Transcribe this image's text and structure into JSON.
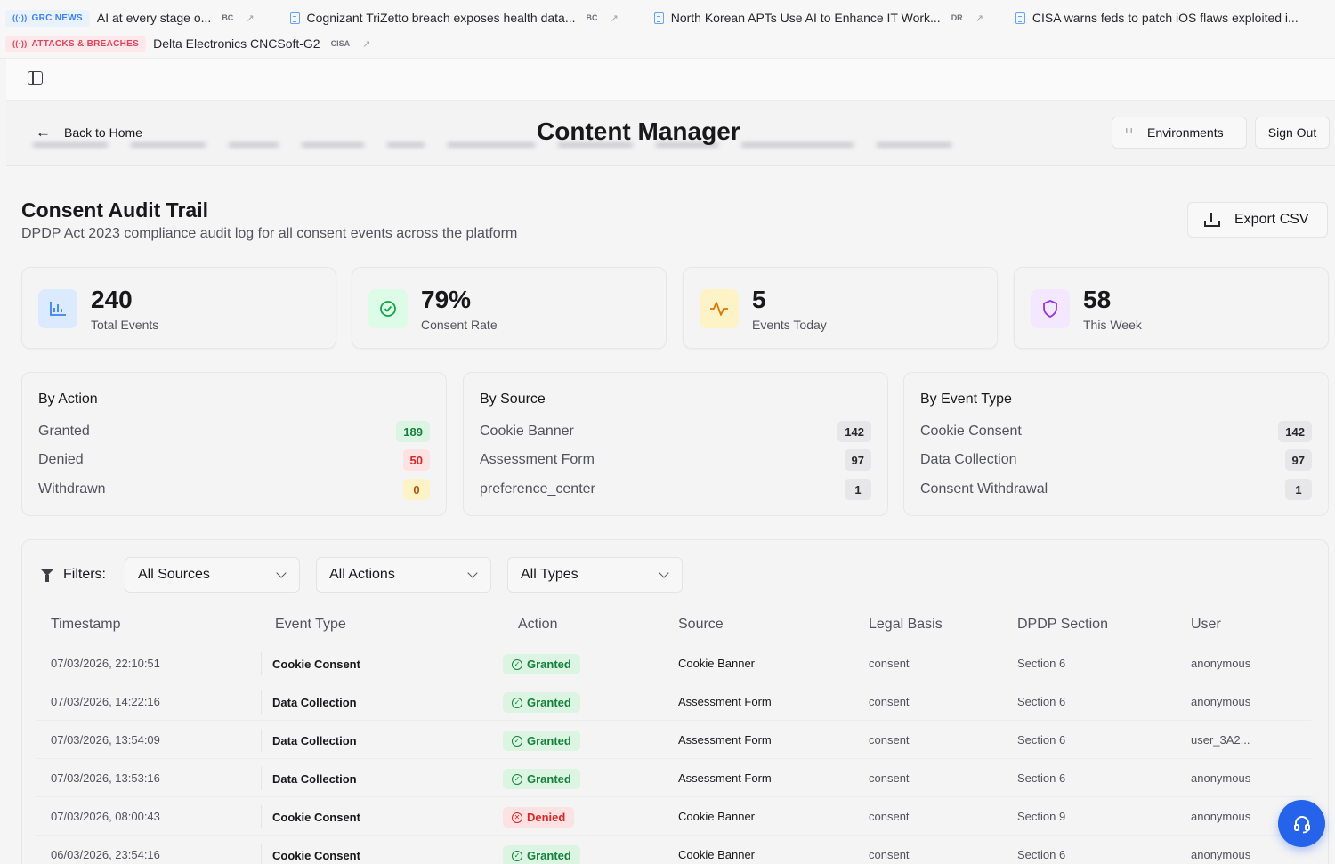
{
  "ticker": {
    "row1": {
      "tag": "GRC NEWS",
      "items": [
        {
          "title": "AI at every stage o...",
          "source": "BC"
        },
        {
          "title": "Cognizant TriZetto breach exposes health data...",
          "source": "BC"
        },
        {
          "title": "North Korean APTs Use AI to Enhance IT Work...",
          "source": "DR"
        },
        {
          "title": "CISA warns feds to patch iOS flaws exploited i...",
          "source": ""
        }
      ]
    },
    "row2": {
      "tag": "ATTACKS & BREACHES",
      "items": [
        {
          "title": "Delta Electronics CNCSoft-G2",
          "source": "CISA"
        }
      ]
    }
  },
  "header": {
    "back_label": "Back to Home",
    "title": "Content Manager",
    "environments_label": "Environments",
    "sign_out_label": "Sign Out"
  },
  "section": {
    "title": "Consent Audit Trail",
    "subtitle": "DPDP Act 2023 compliance audit log for all consent events across the platform",
    "export_label": "Export CSV"
  },
  "stats": [
    {
      "value": "240",
      "label": "Total Events",
      "icon": "bar-chart-icon",
      "color": "#3b82f6"
    },
    {
      "value": "79%",
      "label": "Consent Rate",
      "icon": "check-circle-icon",
      "color": "#16a34a"
    },
    {
      "value": "5",
      "label": "Events Today",
      "icon": "activity-icon",
      "color": "#d97706"
    },
    {
      "value": "58",
      "label": "This Week",
      "icon": "shield-icon",
      "color": "#9333ea"
    }
  ],
  "breakdowns": [
    {
      "title": "By Action",
      "rows": [
        {
          "label": "Granted",
          "count": "189",
          "tone": "green"
        },
        {
          "label": "Denied",
          "count": "50",
          "tone": "red"
        },
        {
          "label": "Withdrawn",
          "count": "0",
          "tone": "yellow"
        }
      ]
    },
    {
      "title": "By Source",
      "rows": [
        {
          "label": "Cookie Banner",
          "count": "142",
          "tone": "gray"
        },
        {
          "label": "Assessment Form",
          "count": "97",
          "tone": "gray"
        },
        {
          "label": "preference_center",
          "count": "1",
          "tone": "gray"
        }
      ]
    },
    {
      "title": "By Event Type",
      "rows": [
        {
          "label": "Cookie Consent",
          "count": "142",
          "tone": "gray"
        },
        {
          "label": "Data Collection",
          "count": "97",
          "tone": "gray"
        },
        {
          "label": "Consent Withdrawal",
          "count": "1",
          "tone": "gray"
        }
      ]
    }
  ],
  "filters": {
    "label": "Filters:",
    "sources": "All Sources",
    "actions": "All Actions",
    "types": "All Types"
  },
  "table": {
    "columns": [
      "Timestamp",
      "Event Type",
      "Action",
      "Source",
      "Legal Basis",
      "DPDP Section",
      "User"
    ],
    "rows": [
      {
        "timestamp": "07/03/2026, 22:10:51",
        "event_type": "Cookie Consent",
        "action": "Granted",
        "source": "Cookie Banner",
        "legal_basis": "consent",
        "section": "Section 6",
        "user": "anonymous"
      },
      {
        "timestamp": "07/03/2026, 14:22:16",
        "event_type": "Data Collection",
        "action": "Granted",
        "source": "Assessment Form",
        "legal_basis": "consent",
        "section": "Section 6",
        "user": "anonymous"
      },
      {
        "timestamp": "07/03/2026, 13:54:09",
        "event_type": "Data Collection",
        "action": "Granted",
        "source": "Assessment Form",
        "legal_basis": "consent",
        "section": "Section 6",
        "user": "user_3A2..."
      },
      {
        "timestamp": "07/03/2026, 13:53:16",
        "event_type": "Data Collection",
        "action": "Granted",
        "source": "Assessment Form",
        "legal_basis": "consent",
        "section": "Section 6",
        "user": "anonymous"
      },
      {
        "timestamp": "07/03/2026, 08:00:43",
        "event_type": "Cookie Consent",
        "action": "Denied",
        "source": "Cookie Banner",
        "legal_basis": "consent",
        "section": "Section 9",
        "user": "anonymous"
      },
      {
        "timestamp": "06/03/2026, 23:54:16",
        "event_type": "Cookie Consent",
        "action": "Granted",
        "source": "Cookie Banner",
        "legal_basis": "consent",
        "section": "Section 6",
        "user": "anonymous"
      }
    ]
  },
  "colors": {
    "accent": "#2563eb",
    "granted_bg": "#dcf5e3",
    "granted_fg": "#15803d",
    "denied_bg": "#fde2e3",
    "denied_fg": "#dc2626"
  },
  "help_icon": "headset-icon"
}
